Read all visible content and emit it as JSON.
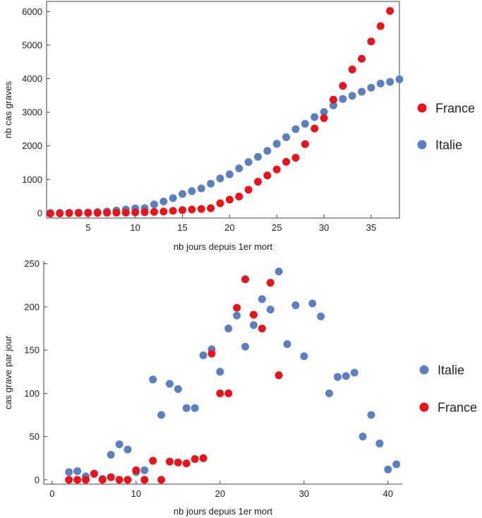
{
  "chart_data": [
    {
      "type": "scatter",
      "xlabel": "nb jours depuis 1er mort",
      "ylabel": "nb cas graves",
      "xlim": [
        0.6,
        38
      ],
      "ylim": [
        -150,
        6300
      ],
      "xticks": [
        5,
        10,
        15,
        20,
        25,
        30,
        35
      ],
      "yticks": [
        0,
        1000,
        2000,
        3000,
        4000,
        5000,
        6000
      ],
      "legend_position": "right",
      "grid": false,
      "series": [
        {
          "name": "Italie",
          "color": "#5b7fbf",
          "points": [
            [
              1,
              3
            ],
            [
              2,
              5
            ],
            [
              3,
              8
            ],
            [
              4,
              12
            ],
            [
              5,
              15
            ],
            [
              6,
              28
            ],
            [
              7,
              46
            ],
            [
              8,
              72
            ],
            [
              9,
              104
            ],
            [
              10,
              135
            ],
            [
              11,
              145
            ],
            [
              12,
              256
            ],
            [
              13,
              343
            ],
            [
              14,
              444
            ],
            [
              15,
              566
            ],
            [
              16,
              651
            ],
            [
              17,
              733
            ],
            [
              18,
              874
            ],
            [
              19,
              1028
            ],
            [
              20,
              1153
            ],
            [
              21,
              1328
            ],
            [
              22,
              1518
            ],
            [
              23,
              1672
            ],
            [
              24,
              1851
            ],
            [
              25,
              2060
            ],
            [
              26,
              2257
            ],
            [
              27,
              2498
            ],
            [
              28,
              2655
            ],
            [
              29,
              2857
            ],
            [
              30,
              3009
            ],
            [
              31,
              3204
            ],
            [
              32,
              3396
            ],
            [
              33,
              3489
            ],
            [
              34,
              3612
            ],
            [
              35,
              3732
            ],
            [
              36,
              3856
            ],
            [
              37,
              3906
            ],
            [
              38,
              3981
            ]
          ]
        },
        {
          "name": "France",
          "color": "#e8141c",
          "points": [
            [
              1,
              -15
            ],
            [
              2,
              -10
            ],
            [
              3,
              -5
            ],
            [
              4,
              0
            ],
            [
              5,
              3
            ],
            [
              6,
              5
            ],
            [
              7,
              7
            ],
            [
              8,
              10
            ],
            [
              9,
              13
            ],
            [
              10,
              20
            ],
            [
              11,
              25
            ],
            [
              12,
              33
            ],
            [
              13,
              45
            ],
            [
              14,
              66
            ],
            [
              15,
              86
            ],
            [
              16,
              105
            ],
            [
              17,
              120
            ],
            [
              18,
              143
            ],
            [
              19,
              290
            ],
            [
              20,
              400
            ],
            [
              21,
              491
            ],
            [
              22,
              694
            ],
            [
              23,
              931
            ],
            [
              24,
              1118
            ],
            [
              25,
              1297
            ],
            [
              26,
              1525
            ],
            [
              27,
              1646
            ],
            [
              28,
              2050
            ],
            [
              29,
              2516
            ],
            [
              30,
              2827
            ],
            [
              31,
              3375
            ],
            [
              32,
              3787
            ],
            [
              33,
              4273
            ],
            [
              34,
              4592
            ],
            [
              35,
              5107
            ],
            [
              36,
              5565
            ],
            [
              37,
              6017
            ]
          ]
        }
      ]
    },
    {
      "type": "scatter",
      "xlabel": "nb jours depuis 1er mort",
      "ylabel": "cas grave par jour",
      "xlim": [
        -1,
        41.7
      ],
      "ylim": [
        -5,
        253
      ],
      "xticks": [
        0,
        10,
        20,
        30,
        40
      ],
      "yticks": [
        0,
        50,
        100,
        150,
        200,
        250
      ],
      "legend_position": "right",
      "grid": false,
      "series": [
        {
          "name": "Italie",
          "color": "#5b7fbf",
          "points": [
            [
              2,
              9
            ],
            [
              3,
              10
            ],
            [
              4,
              4
            ],
            [
              5,
              7
            ],
            [
              6,
              1
            ],
            [
              7,
              29
            ],
            [
              8,
              41
            ],
            [
              9,
              35
            ],
            [
              10,
              9
            ],
            [
              11,
              11
            ],
            [
              12,
              116
            ],
            [
              13,
              75
            ],
            [
              14,
              111
            ],
            [
              15,
              105
            ],
            [
              16,
              83
            ],
            [
              17,
              83
            ],
            [
              18,
              144
            ],
            [
              19,
              151
            ],
            [
              20,
              125
            ],
            [
              21,
              175
            ],
            [
              22,
              190
            ],
            [
              23,
              154
            ],
            [
              24,
              179
            ],
            [
              25,
              209
            ],
            [
              26,
              197
            ],
            [
              27,
              241
            ],
            [
              28,
              157
            ],
            [
              29,
              202
            ],
            [
              30,
              143
            ],
            [
              31,
              204
            ],
            [
              32,
              189
            ],
            [
              33,
              100
            ],
            [
              34,
              119
            ],
            [
              35,
              120
            ],
            [
              36,
              124
            ],
            [
              37,
              50
            ],
            [
              38,
              75
            ],
            [
              39,
              42
            ],
            [
              40,
              12
            ],
            [
              41,
              18
            ]
          ]
        },
        {
          "name": "France",
          "color": "#e8141c",
          "points": [
            [
              2,
              0
            ],
            [
              3,
              0
            ],
            [
              4,
              0
            ],
            [
              5,
              7
            ],
            [
              6,
              0
            ],
            [
              7,
              3
            ],
            [
              8,
              0
            ],
            [
              9,
              0
            ],
            [
              10,
              11
            ],
            [
              11,
              0
            ],
            [
              12,
              22
            ],
            [
              13,
              0
            ],
            [
              14,
              21
            ],
            [
              15,
              20
            ],
            [
              16,
              19
            ],
            [
              17,
              24
            ],
            [
              18,
              25
            ],
            [
              19,
              146
            ],
            [
              20,
              100
            ],
            [
              21,
              100
            ],
            [
              22,
              199
            ],
            [
              23,
              232
            ],
            [
              24,
              191
            ],
            [
              25,
              175
            ],
            [
              26,
              228
            ],
            [
              27,
              121
            ]
          ]
        }
      ]
    }
  ]
}
